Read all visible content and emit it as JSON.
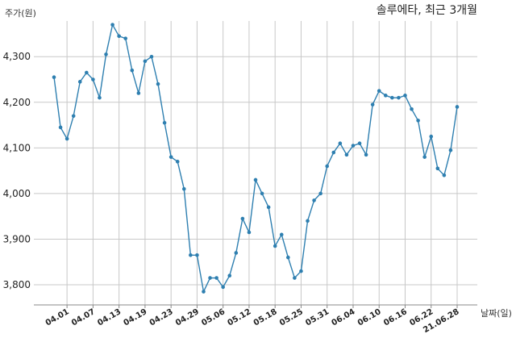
{
  "chart_data": {
    "type": "line",
    "title": "솔루에타, 최근 3개월",
    "xlabel": "날짜(일)",
    "ylabel": "주가(원)",
    "ylim": [
      3770,
      4380
    ],
    "yticks": [
      3800,
      3900,
      4000,
      4100,
      4200,
      4300
    ],
    "ytick_labels": [
      "3,800",
      "3,900",
      "4,000",
      "4,100",
      "4,200",
      "4,300"
    ],
    "x_tick_labels": [
      "04.01",
      "04.07",
      "04.13",
      "04.19",
      "04.23",
      "04.29",
      "05.06",
      "05.12",
      "05.18",
      "05.25",
      "05.31",
      "06.04",
      "06.10",
      "06.16",
      "06.22",
      "21.06.28"
    ],
    "x_tick_indices": [
      2,
      6,
      10,
      14,
      18,
      22,
      26,
      30,
      34,
      38,
      42,
      46,
      50,
      54,
      58,
      62
    ],
    "grid": true,
    "line_color": "#2e7fb0",
    "series": [
      {
        "values": [
          4255,
          4145,
          4120,
          4170,
          4245,
          4265,
          4250,
          4210,
          4305,
          4370,
          4345,
          4340,
          4270,
          4220,
          4290,
          4300,
          4240,
          4155,
          4080,
          4070,
          4010,
          3865,
          3865,
          3785,
          3815,
          3815,
          3795,
          3820,
          3870,
          3945,
          3915,
          4030,
          4000,
          3970,
          3885,
          3910,
          3860,
          3815,
          3830,
          3940,
          3985,
          4000,
          4060,
          4090,
          4110,
          4085,
          4105,
          4110,
          4085,
          4195,
          4225,
          4215,
          4210,
          4210,
          4215,
          4185,
          4160,
          4080,
          4125,
          4055,
          4040,
          4095,
          4190
        ]
      }
    ]
  }
}
